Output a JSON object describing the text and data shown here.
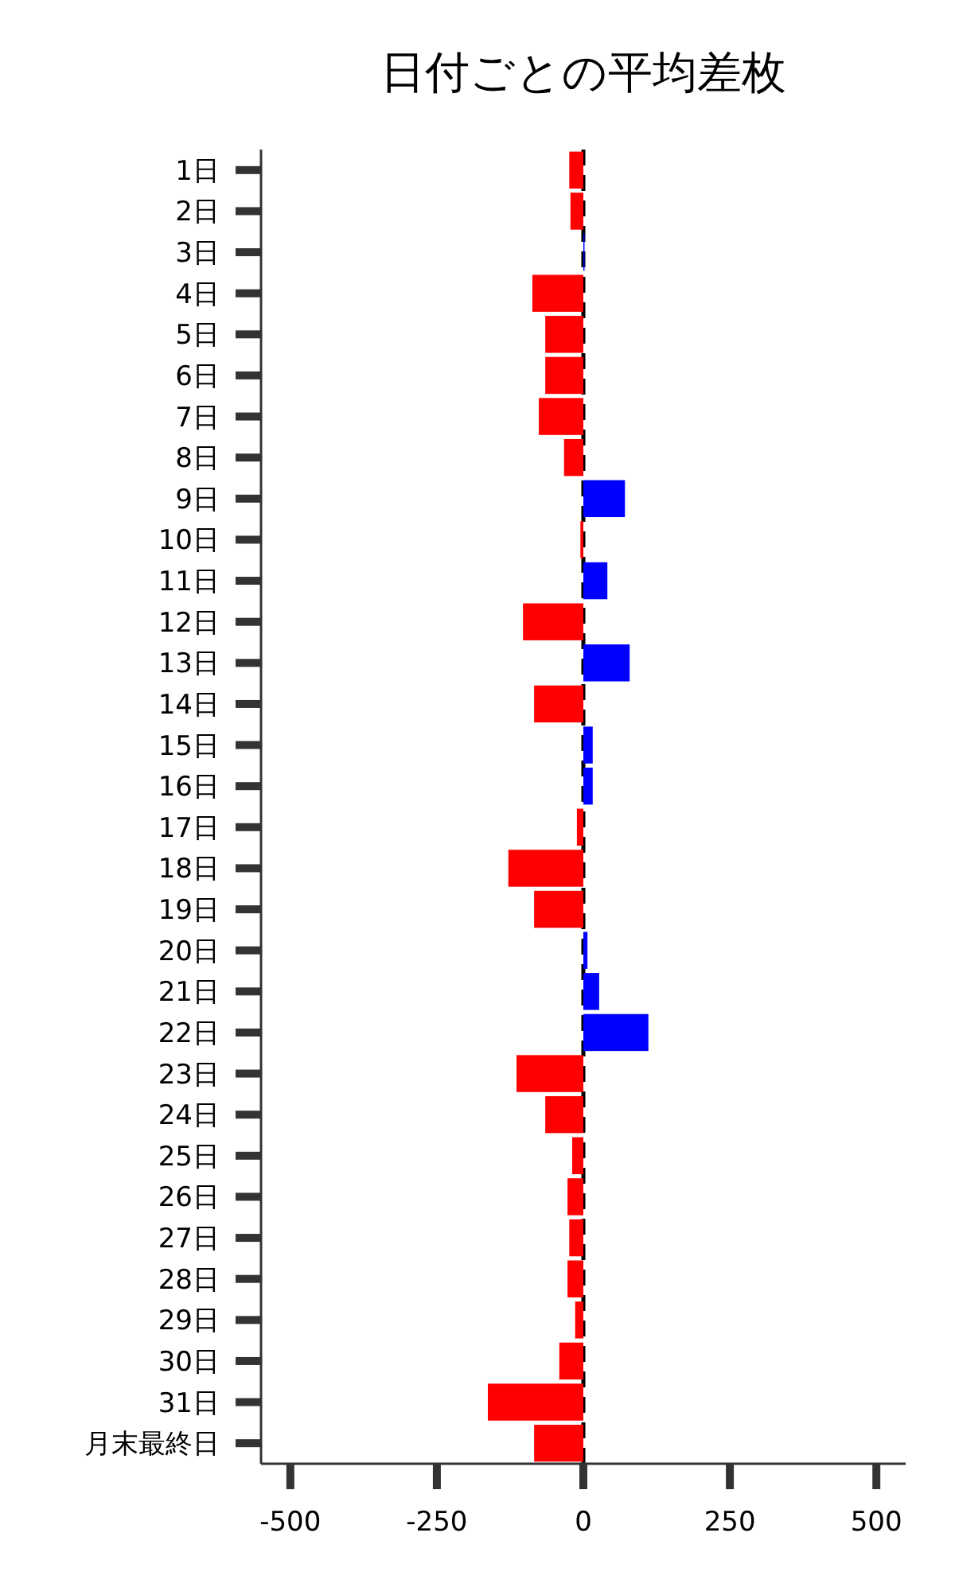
{
  "chart_data": {
    "type": "bar",
    "orientation": "horizontal",
    "title": "日付ごとの平均差枚",
    "categories": [
      "1日",
      "2日",
      "3日",
      "4日",
      "5日",
      "6日",
      "7日",
      "8日",
      "9日",
      "10日",
      "11日",
      "12日",
      "13日",
      "14日",
      "15日",
      "16日",
      "17日",
      "18日",
      "19日",
      "20日",
      "21日",
      "22日",
      "23日",
      "24日",
      "25日",
      "26日",
      "27日",
      "28日",
      "29日",
      "30日",
      "31日",
      "月末最終日"
    ],
    "values": [
      -24,
      -22,
      2,
      -87,
      -65,
      -65,
      -76,
      -33,
      71,
      -5,
      41,
      -103,
      79,
      -84,
      16,
      16,
      -11,
      -128,
      -84,
      7,
      27,
      111,
      -114,
      -65,
      -19,
      -27,
      -24,
      -27,
      -14,
      -41,
      -163,
      -84
    ],
    "colors": [
      "#ff0000",
      "#ff0000",
      "#0000ff",
      "#ff0000",
      "#ff0000",
      "#ff0000",
      "#ff0000",
      "#ff0000",
      "#0000ff",
      "#ff0000",
      "#0000ff",
      "#ff0000",
      "#0000ff",
      "#ff0000",
      "#0000ff",
      "#0000ff",
      "#ff0000",
      "#ff0000",
      "#ff0000",
      "#0000ff",
      "#0000ff",
      "#0000ff",
      "#ff0000",
      "#ff0000",
      "#ff0000",
      "#ff0000",
      "#ff0000",
      "#ff0000",
      "#ff0000",
      "#ff0000",
      "#ff0000",
      "#ff0000"
    ],
    "xlim": [
      -550,
      550
    ],
    "xticks": [
      -500,
      -250,
      0,
      250,
      500
    ],
    "ref_lines": [
      {
        "axis": "x",
        "value": 0,
        "color": "#000000",
        "line_style": "dashed"
      }
    ],
    "grid": false
  }
}
